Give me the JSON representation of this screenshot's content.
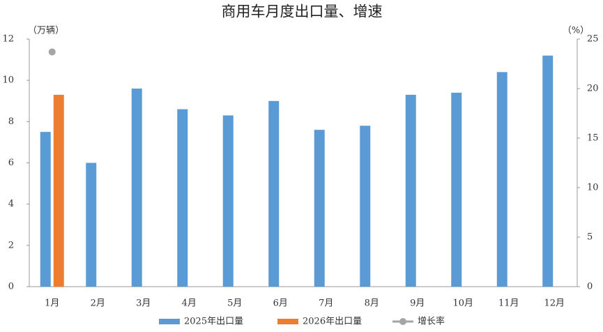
{
  "chart_data": {
    "type": "bar",
    "title": "商用车月度出口量、增速",
    "y_axis_label": "（万辆）",
    "y2_axis_label": "（%）",
    "categories": [
      "1月",
      "2月",
      "3月",
      "4月",
      "5月",
      "6月",
      "7月",
      "8月",
      "9月",
      "10月",
      "11月",
      "12月"
    ],
    "series": [
      {
        "name": "2025年出口量",
        "color": "#5b9bd5",
        "type": "bar",
        "values": [
          7.5,
          6.0,
          9.6,
          8.6,
          8.3,
          9.0,
          7.6,
          7.8,
          9.3,
          9.4,
          10.4,
          11.2
        ]
      },
      {
        "name": "2026年出口量",
        "color": "#ed7d31",
        "type": "bar",
        "values": [
          9.3,
          null,
          null,
          null,
          null,
          null,
          null,
          null,
          null,
          null,
          null,
          null
        ]
      },
      {
        "name": "增长率",
        "color": "#a5a5a5",
        "type": "line",
        "axis": "y2",
        "values": [
          23.7,
          null,
          null,
          null,
          null,
          null,
          null,
          null,
          null,
          null,
          null,
          null
        ]
      }
    ],
    "ylim": [
      0,
      12
    ],
    "yticks": [
      0,
      2,
      4,
      6,
      8,
      10,
      12
    ],
    "y2lim": [
      0,
      25
    ],
    "y2ticks": [
      0,
      5,
      10,
      15,
      20,
      25
    ],
    "legend": "bottom"
  }
}
